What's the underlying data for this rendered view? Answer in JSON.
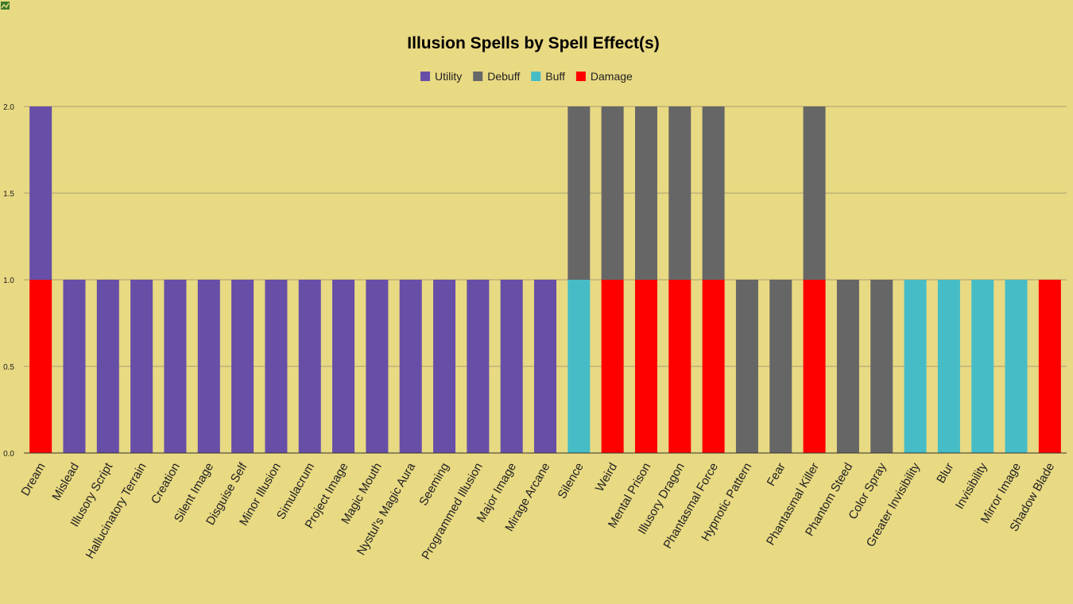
{
  "icons": {
    "corner": "broken-image-icon"
  },
  "chart_data": {
    "type": "bar",
    "stacked": true,
    "title": "Illusion Spells by Spell Effect(s)",
    "legend_position": "top",
    "grid": true,
    "ylim": [
      0,
      2
    ],
    "yticks": [
      "0.0",
      "0.5",
      "1.0",
      "1.5",
      "2.0"
    ],
    "categories": [
      "Dream",
      "Mislead",
      "Illusory Script",
      "Hallucinatory Terrain",
      "Creation",
      "Silent Image",
      "Disguise Self",
      "Minor Illusion",
      "Simulacrum",
      "Project Image",
      "Magic Mouth",
      "Nystul's Magic Aura",
      "Seeming",
      "Programmed Illusion",
      "Major Image",
      "Mirage Arcane",
      "Silence",
      "Weird",
      "Mental Prison",
      "Illusory Dragon",
      "Phantasmal Force",
      "Hypnotic Pattern",
      "Fear",
      "Phantasmal Killer",
      "Phantom Steed",
      "Color Spray",
      "Greater Invisibility",
      "Blur",
      "Invisibility",
      "Mirror Image",
      "Shadow Blade"
    ],
    "series": [
      {
        "name": "Damage",
        "color": "#ff0000",
        "values": [
          1,
          0,
          0,
          0,
          0,
          0,
          0,
          0,
          0,
          0,
          0,
          0,
          0,
          0,
          0,
          0,
          0,
          1,
          1,
          1,
          1,
          0,
          0,
          1,
          0,
          0,
          0,
          0,
          0,
          0,
          1
        ]
      },
      {
        "name": "Buff",
        "color": "#46bdc6",
        "values": [
          0,
          0,
          0,
          0,
          0,
          0,
          0,
          0,
          0,
          0,
          0,
          0,
          0,
          0,
          0,
          0,
          1,
          0,
          0,
          0,
          0,
          0,
          0,
          0,
          0,
          0,
          1,
          1,
          1,
          1,
          0
        ]
      },
      {
        "name": "Debuff",
        "color": "#666666",
        "values": [
          0,
          0,
          0,
          0,
          0,
          0,
          0,
          0,
          0,
          0,
          0,
          0,
          0,
          0,
          0,
          0,
          1,
          1,
          1,
          1,
          1,
          1,
          1,
          1,
          1,
          1,
          0,
          0,
          0,
          0,
          0
        ]
      },
      {
        "name": "Utility",
        "color": "#674ea7",
        "values": [
          1,
          1,
          1,
          1,
          1,
          1,
          1,
          1,
          1,
          1,
          1,
          1,
          1,
          1,
          1,
          1,
          0,
          0,
          0,
          0,
          0,
          0,
          0,
          0,
          0,
          0,
          0,
          0,
          0,
          0,
          0
        ]
      }
    ],
    "legend_order": [
      "Utility",
      "Debuff",
      "Buff",
      "Damage"
    ]
  }
}
